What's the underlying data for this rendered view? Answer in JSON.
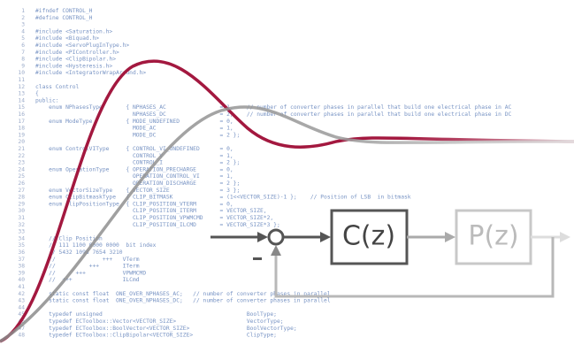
{
  "code_lines": [
    "#ifndef CONTROL_H",
    "#define CONTROL_H",
    "",
    "#include <Saturation.h>",
    "#include <Biquad.h>",
    "#include <ServoPlugInType.h>",
    "#include <PIController.h>",
    "#include <ClipBipolar.h>",
    "#include <Hysteresis.h>",
    "#include <IntegratorWrapAround.h>",
    "",
    "class Control",
    "{",
    "public:",
    "    enum NPhasesType       { NPHASES_AC                = 1,    // number of converter phases in parallel that build one electrical phase in AC",
    "                             NPHASES_DC                = 2,    // number of converter phases in parallel that build one electrical phase in DC",
    "    enum ModeType          { MODE_UNDEFINED            = 0,",
    "                             MODE_AC                   = 1,",
    "                             MODE_DC                   = 2 };",
    "",
    "    enum ControlVIType     { CONTROL_VI_UNDEFINED      = 0,",
    "                             CONTROL_V                 = 1,",
    "                             CONTROL_I                 = 2 };",
    "    enum OperationType     { OPERATION_PRECHARGE       = 0,",
    "                             OPERATION_CONTROL_VI      = 1,",
    "                             OPERATION_DISCHARGE       = 2 };",
    "    enum VectorSizeType    { VECTOR_SIZE               = 3 };",
    "    enum ClipBitmaskType   { CLIP_BITMASK              = (1<<VECTOR_SIZE)-1 };    // Position of LSB  in bitmask",
    "    enum ClipPositionType  { CLIP_POSITION_VTERM       = 0,",
    "                             CLIP_POSITION_ITERM       = VECTOR_SIZE,",
    "                             CLIP_POSITION_VPWMCMD     = VECTOR_SIZE*2,",
    "                             CLIP_POSITION_ILCMD       = VECTOR_SIZE*3 };",
    "",
    "    // Clip Position",
    "    // 111 1100 0000 0000  bit index",
    "    // 5432 1098 7654 3210",
    "    //              +++   VTerm",
    "    //          +++       ITerm",
    "    //      +++           VPWMCMD",
    "    //  +++               ILCmd",
    "",
    "    static const float  ONE_OVER_NPHASES_AC;   // number of converter phases in parallel",
    "    static const float  ONE_OVER_NPHASES_DC;   // number of converter phases in parallel",
    "",
    "    typedef unsigned                                           BoolType;",
    "    typedef ECToolbox::Vector<VECTOR_SIZE>                     VectorType;",
    "    typedef ECToolbox::BoolVector<VECTOR_SIZE>                 BoolVectorType;",
    "    typedef ECToolbox::ClipBipolar<VECTOR_SIZE>                ClipType;"
  ],
  "line_numbers": [
    1,
    2,
    3,
    4,
    5,
    6,
    7,
    8,
    9,
    10,
    11,
    12,
    13,
    14,
    15,
    16,
    17,
    18,
    19,
    20,
    21,
    22,
    23,
    24,
    25,
    26,
    27,
    28,
    29,
    30,
    31,
    32,
    33,
    34,
    35,
    36,
    37,
    38,
    39,
    40,
    41,
    42,
    43,
    44,
    45,
    46,
    47,
    48
  ],
  "diagram": {
    "controller": "C(z)",
    "plant": "P(z)"
  }
}
